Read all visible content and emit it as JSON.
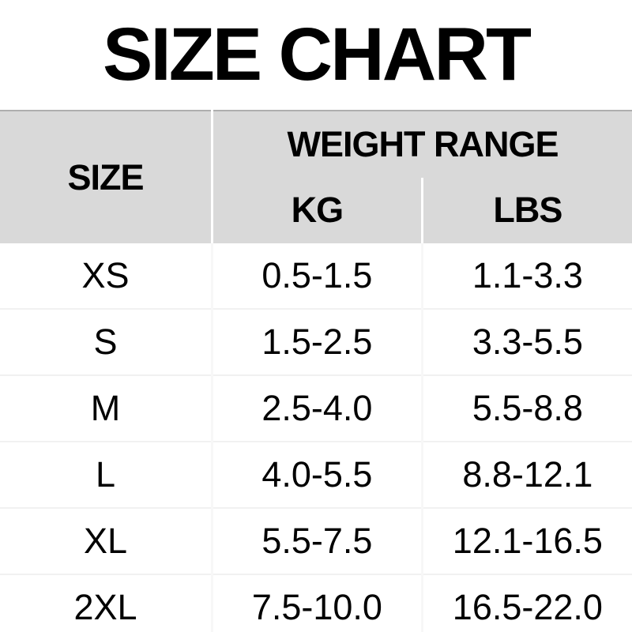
{
  "chart_data": {
    "type": "table",
    "title": "SIZE CHART",
    "headers": {
      "size": "SIZE",
      "group": "WEIGHT RANGE",
      "kg": "KG",
      "lbs": "LBS"
    },
    "columns": [
      "SIZE",
      "KG",
      "LBS"
    ],
    "rows": [
      {
        "size": "XS",
        "kg": "0.5-1.5",
        "lbs": "1.1-3.3"
      },
      {
        "size": "S",
        "kg": "1.5-2.5",
        "lbs": "3.3-5.5"
      },
      {
        "size": "M",
        "kg": "2.5-4.0",
        "lbs": "5.5-8.8"
      },
      {
        "size": "L",
        "kg": "4.0-5.5",
        "lbs": "8.8-12.1"
      },
      {
        "size": "XL",
        "kg": "5.5-7.5",
        "lbs": "12.1-16.5"
      },
      {
        "size": "2XL",
        "kg": "7.5-10.0",
        "lbs": "16.5-22.0"
      }
    ]
  },
  "colors": {
    "header_bg": "#d9d9d9",
    "table_top_border": "#aeaeae",
    "header_divider": "#ffffff",
    "row_separator": "#f1f1f1",
    "column_separator": "#f7f7f7",
    "text": "#000000",
    "background": "#ffffff"
  }
}
